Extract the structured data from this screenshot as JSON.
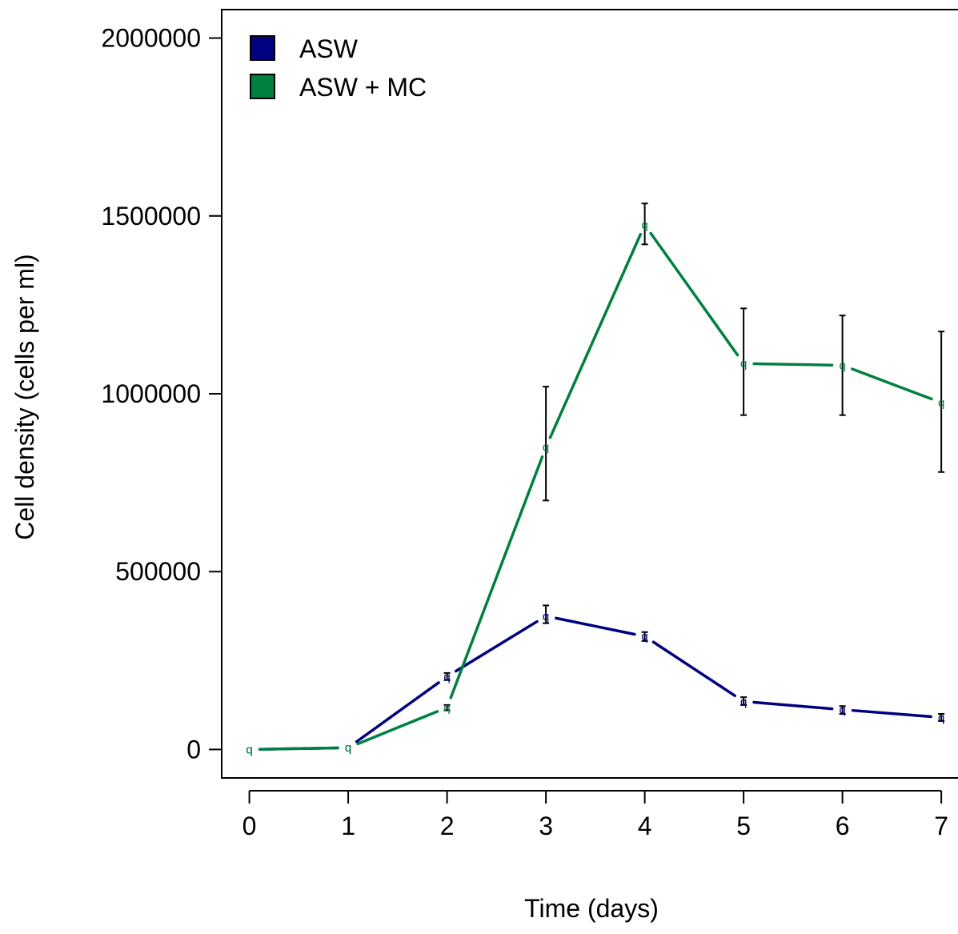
{
  "chart_data": {
    "type": "line",
    "title": "",
    "xlabel": "Time (days)",
    "ylabel": "Cell density (cells per ml)",
    "x": [
      0,
      1,
      2,
      3,
      4,
      5,
      6,
      7
    ],
    "xlim": [
      -0.28,
      7.25
    ],
    "ylim": [
      -80000,
      2080000
    ],
    "x_ticks": [
      "0",
      "1",
      "2",
      "3",
      "4",
      "5",
      "6",
      "7"
    ],
    "y_ticks": [
      "0",
      "500000",
      "1000000",
      "1500000",
      "2000000"
    ],
    "grid": false,
    "legend_position": "top-left",
    "series": [
      {
        "name": "ASW",
        "color": "#000080",
        "values": [
          0,
          5000,
          205000,
          375000,
          318000,
          135000,
          112000,
          90000
        ],
        "error_low": [
          0,
          0,
          195000,
          355000,
          305000,
          125000,
          100000,
          80000
        ],
        "error_high": [
          0,
          0,
          215000,
          405000,
          330000,
          147000,
          122000,
          100000
        ],
        "point_label": "q"
      },
      {
        "name": "ASW + MC",
        "color": "#008040",
        "values": [
          0,
          5000,
          118000,
          850000,
          1475000,
          1085000,
          1080000,
          975000
        ],
        "error_low": [
          0,
          0,
          110000,
          700000,
          1420000,
          940000,
          940000,
          780000
        ],
        "error_high": [
          0,
          0,
          125000,
          1020000,
          1535000,
          1240000,
          1220000,
          1175000
        ],
        "point_label": "q"
      }
    ]
  }
}
